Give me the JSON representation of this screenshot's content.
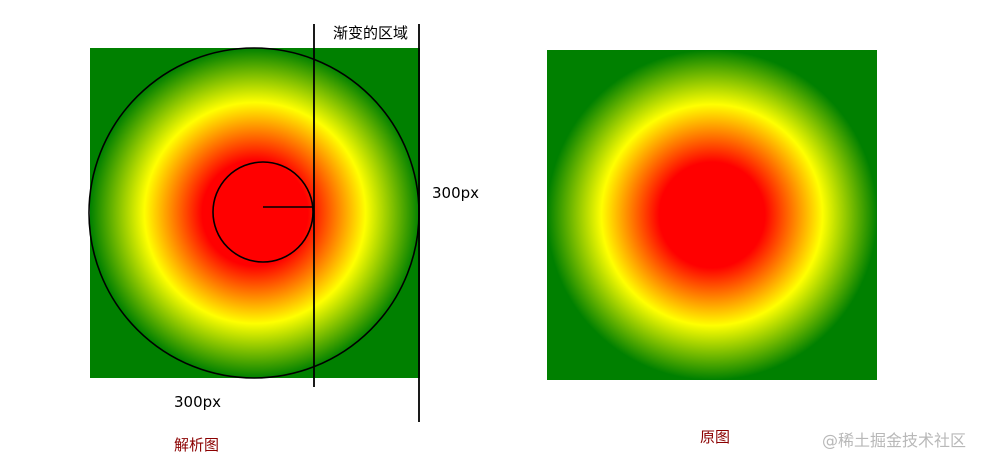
{
  "colors": {
    "center": "#ff0000",
    "middle": "#ffff00",
    "outer": "#008000",
    "annotation_lines": "#000000",
    "caption_text": "#8b0000",
    "watermark_text": "#b8b8b8"
  },
  "labels": {
    "gradient_region": "渐变的区域",
    "height_dimension": "300px",
    "width_dimension": "300px",
    "analysis_caption": "解析图",
    "original_caption": "原图"
  },
  "watermark": "@稀土掘金技术社区"
}
